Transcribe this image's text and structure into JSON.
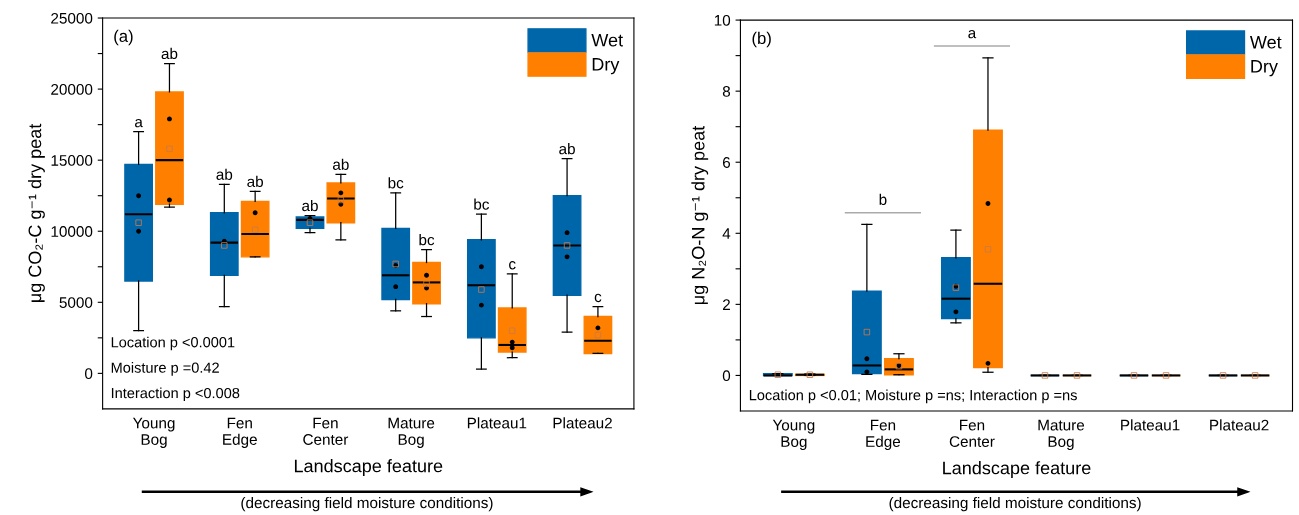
{
  "chart_data": [
    {
      "type": "box",
      "title": "(a)",
      "xlabel": "Landscape feature",
      "ylabel": "μg CO₂-C g⁻¹ dry peat",
      "categories": [
        "Young\nBog",
        "Fen\nEdge",
        "Fen\nCenter",
        "Mature\nBog",
        "Plateau1",
        "Plateau2"
      ],
      "ylim": [
        -2500,
        25000
      ],
      "yticks": [
        0,
        {
          "value": 2500,
          "label": null
        },
        5000,
        {
          "value": 7500,
          "label": null
        },
        10000,
        {
          "value": 12500,
          "label": null
        },
        15000,
        {
          "value": 17500,
          "label": null
        },
        20000,
        {
          "value": 22500,
          "label": null
        },
        25000
      ],
      "grid": false,
      "legend": "top right",
      "series": [
        {
          "name": "Wet",
          "color": "#0066aa",
          "value_labels": [
            "a",
            "ab",
            "ab",
            "bc",
            "bc",
            "ab"
          ],
          "boxes": [
            {
              "low": 3000,
              "q1": 6500,
              "median": 11200,
              "q3": 14700,
              "high": 17000,
              "mean": 10600,
              "outliers": [
                12500,
                10000
              ]
            },
            {
              "low": 4700,
              "q1": 6900,
              "median": 9200,
              "q3": 11300,
              "high": 13300,
              "mean": 9000,
              "outliers": [
                9300
              ]
            },
            {
              "low": 9900,
              "q1": 10200,
              "median": 10800,
              "q3": 11000,
              "high": 11100,
              "mean": 10600,
              "outliers": [
                10900
              ]
            },
            {
              "low": 4400,
              "q1": 5200,
              "median": 6900,
              "q3": 10200,
              "high": 12700,
              "mean": 7700,
              "outliers": [
                7600,
                6100
              ]
            },
            {
              "low": 300,
              "q1": 2500,
              "median": 6200,
              "q3": 9400,
              "high": 11200,
              "mean": 5900,
              "outliers": [
                7500,
                4800
              ]
            },
            {
              "low": 2900,
              "q1": 5500,
              "median": 9000,
              "q3": 12500,
              "high": 15100,
              "mean": 9000,
              "outliers": [
                9900,
                8200
              ]
            }
          ]
        },
        {
          "name": "Dry",
          "color": "#ff8000",
          "value_labels": [
            "ab",
            "ab",
            "ab",
            "bc",
            "c",
            "c"
          ],
          "boxes": [
            {
              "low": 11700,
              "q1": 11900,
              "median": 15000,
              "q3": 19800,
              "high": 21800,
              "mean": 15800,
              "outliers": [
                17900,
                12200
              ]
            },
            {
              "low": 8200,
              "q1": 8200,
              "median": 9800,
              "q3": 12100,
              "high": 12800,
              "mean": 10100,
              "outliers": [
                11300
              ]
            },
            {
              "low": 9400,
              "q1": 10600,
              "median": 12300,
              "q3": 13400,
              "high": 14000,
              "mean": 12200,
              "outliers": [
                12700,
                11900
              ]
            },
            {
              "low": 4000,
              "q1": 4900,
              "median": 6400,
              "q3": 7800,
              "high": 8700,
              "mean": 6300,
              "outliers": [
                6900,
                6000
              ]
            },
            {
              "low": 1100,
              "q1": 1500,
              "median": 2000,
              "q3": 4600,
              "high": 7000,
              "mean": 3000,
              "outliers": [
                2200,
                1800
              ]
            },
            {
              "low": 1400,
              "q1": 1400,
              "median": 2300,
              "q3": 4000,
              "high": 4700,
              "mean": 2700,
              "outliers": [
                3200
              ]
            }
          ]
        }
      ],
      "annotations": [
        "Location p <0.0001",
        "Moisture p =0.42",
        "Interaction p <0.008",
        "(decreasing field moisture conditions)"
      ]
    },
    {
      "type": "box",
      "title": "(b)",
      "xlabel": "Landscape feature",
      "ylabel": "μg N₂O-N g⁻¹ dry peat",
      "categories": [
        "Young\nBog",
        "Fen\nEdge",
        "Fen\nCenter",
        "Mature\nBog",
        "Plateau1",
        "Plateau2"
      ],
      "ylim": [
        -1,
        10
      ],
      "yticks": [
        0,
        {
          "value": 1,
          "label": null
        },
        2,
        {
          "value": 3,
          "label": null
        },
        4,
        {
          "value": 5,
          "label": null
        },
        6,
        {
          "value": 7,
          "label": null
        },
        8,
        {
          "value": 9,
          "label": null
        },
        10
      ],
      "grid": false,
      "legend": "top right",
      "series": [
        {
          "name": "Wet",
          "color": "#0066aa",
          "value_labels": [
            null,
            "b",
            "a",
            null,
            null,
            null
          ],
          "boxes": [
            {
              "low": 0,
              "q1": 0,
              "median": 0,
              "q3": 0.05,
              "high": 0.05,
              "mean": 0.02
            },
            {
              "low": 0.03,
              "q1": 0.05,
              "median": 0.28,
              "q3": 2.37,
              "high": 4.25,
              "mean": 1.22,
              "outliers": [
                0.47,
                0.1
              ]
            },
            {
              "low": 1.48,
              "q1": 1.6,
              "median": 2.16,
              "q3": 3.31,
              "high": 4.09,
              "mean": 2.47,
              "outliers": [
                2.51,
                1.79
              ]
            },
            {
              "low": 0,
              "q1": 0,
              "median": 0,
              "q3": 0,
              "high": 0,
              "mean": 0
            },
            {
              "low": 0,
              "q1": 0,
              "median": 0,
              "q3": 0,
              "high": 0,
              "mean": 0
            },
            {
              "low": 0,
              "q1": 0,
              "median": 0,
              "q3": 0,
              "high": 0,
              "mean": 0
            }
          ]
        },
        {
          "name": "Dry",
          "color": "#ff8000",
          "boxes": [
            {
              "low": 0,
              "q1": 0,
              "median": 0.02,
              "q3": 0.03,
              "high": 0.04,
              "mean": 0.02
            },
            {
              "low": 0.02,
              "q1": 0.02,
              "median": 0.17,
              "q3": 0.47,
              "high": 0.61,
              "mean": 0.26,
              "outliers": [
                0.28
              ]
            },
            {
              "low": 0.09,
              "q1": 0.22,
              "median": 2.58,
              "q3": 6.9,
              "high": 8.94,
              "mean": 3.55,
              "outliers": [
                4.84,
                0.34
              ]
            },
            {
              "low": 0,
              "q1": 0,
              "median": 0,
              "q3": 0,
              "high": 0,
              "mean": 0
            },
            {
              "low": 0,
              "q1": 0,
              "median": 0,
              "q3": 0,
              "high": 0,
              "mean": 0
            },
            {
              "low": 0,
              "q1": 0,
              "median": 0,
              "q3": 0,
              "high": 0,
              "mean": 0
            }
          ]
        }
      ],
      "annotations": [
        "Location p <0.01; Moisture p =ns; Interaction p =ns",
        "(decreasing field moisture conditions)"
      ]
    }
  ]
}
